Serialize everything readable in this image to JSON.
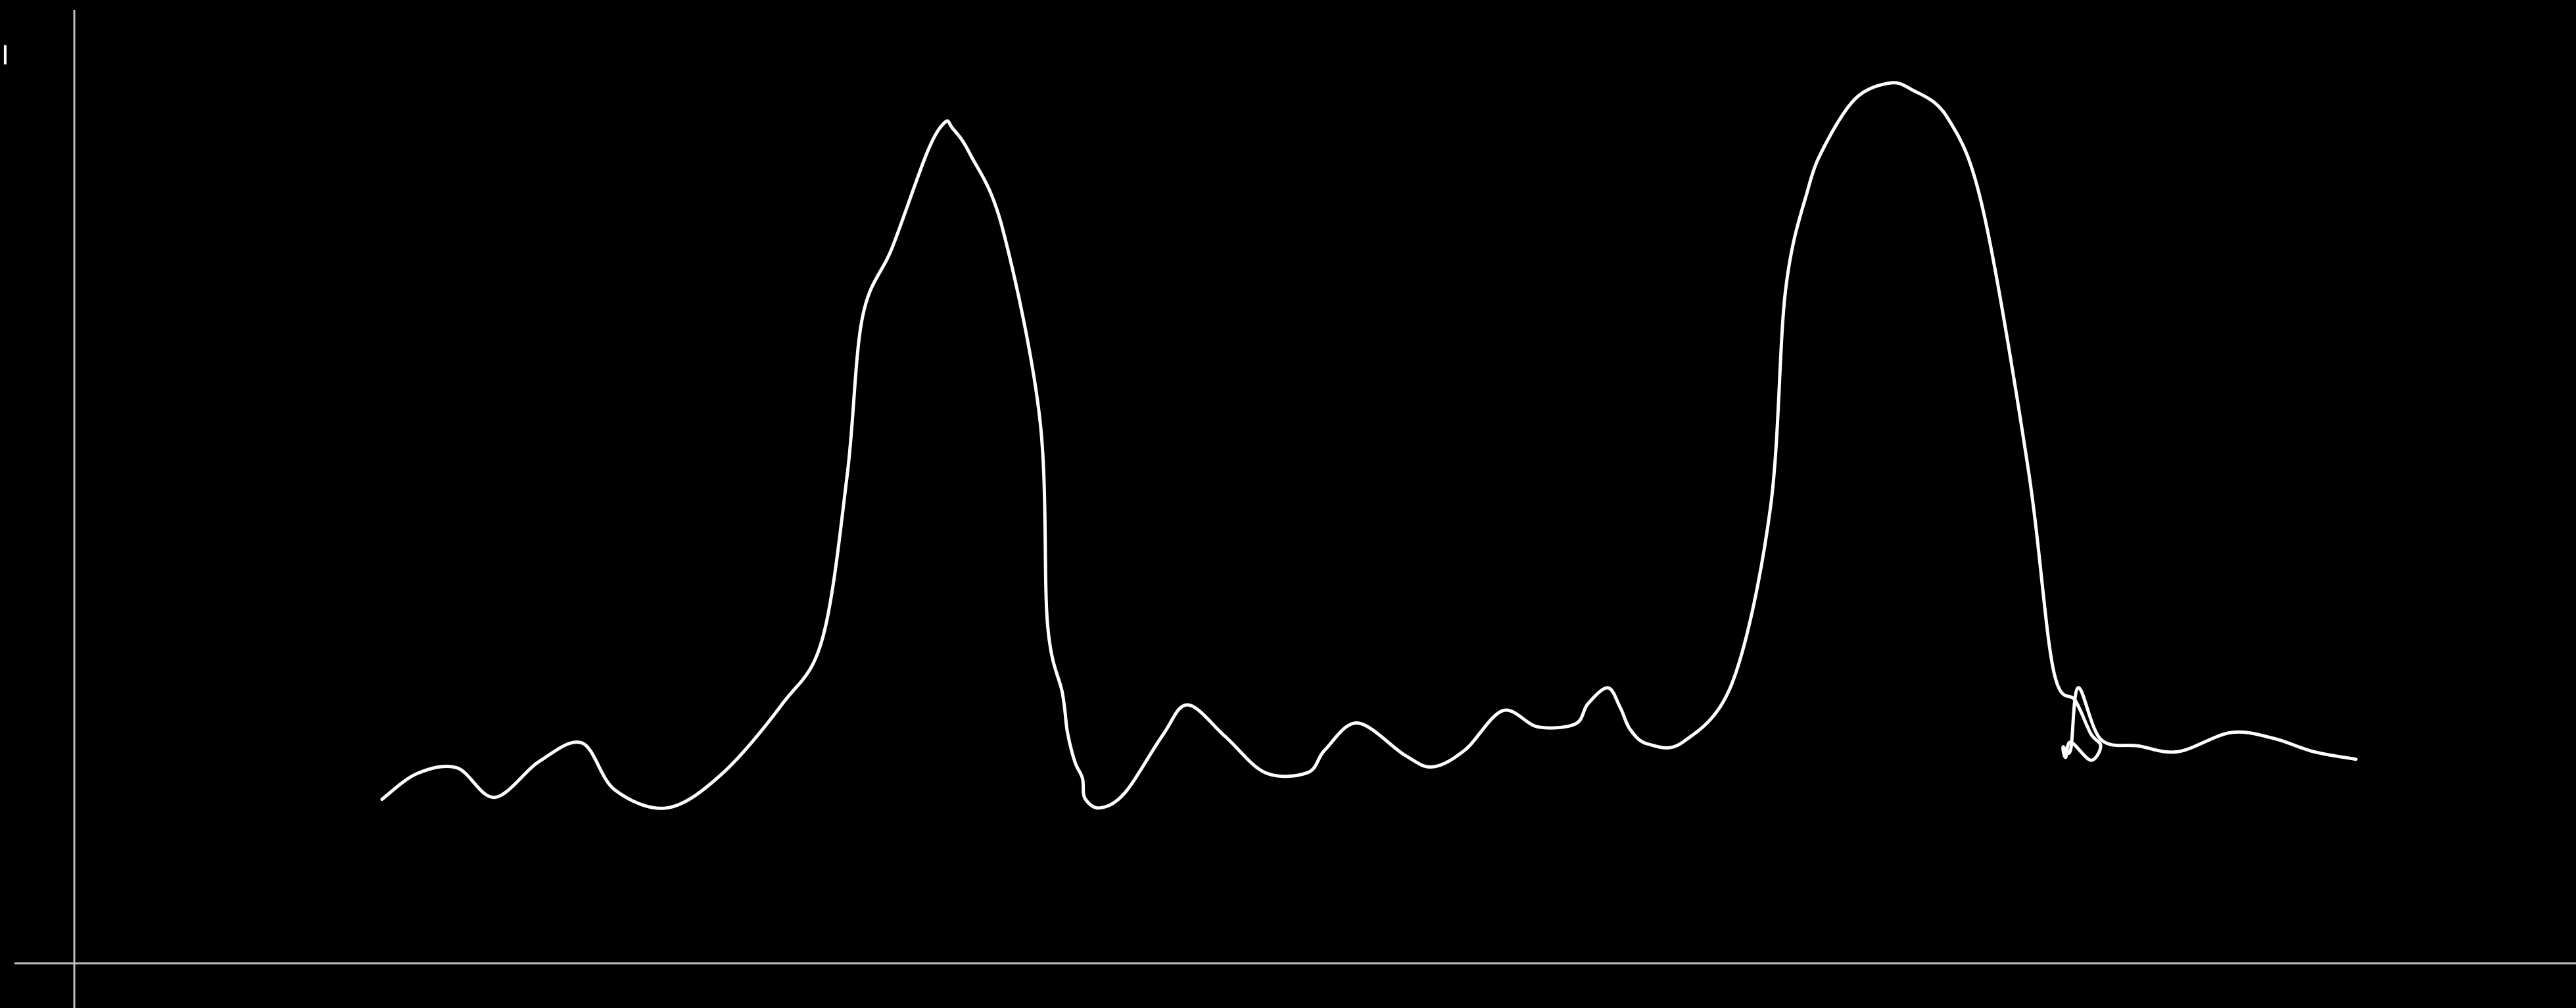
{
  "chart_data": {
    "type": "line",
    "title": "",
    "xlabel": "",
    "ylabel": "I",
    "xlim": [
      0,
      100
    ],
    "ylim": [
      0,
      100
    ],
    "grid": false,
    "legend": "none",
    "series": [
      {
        "color": "#ffffff",
        "x": [
          12.3,
          13.7,
          15.3,
          16.8,
          18.6,
          20.3,
          21.6,
          23.7,
          25.9,
          28.3,
          29.9,
          30.9,
          31.5,
          32.7,
          34.1,
          34.8,
          35.1,
          35.8,
          37.1,
          38.6,
          38.9,
          39.5,
          39.7,
          40.0,
          40.3,
          40.4,
          41.0,
          42.0,
          43.5,
          44.5,
          46.0,
          47.6,
          49.3,
          50.0,
          51.3,
          53.2,
          54.3,
          55.6,
          57.1,
          58.5,
          60.0,
          60.5,
          61.3,
          61.8,
          62.2,
          62.9,
          64.3,
          66.3,
          67.8,
          68.4,
          69.3,
          70.0,
          71.2,
          72.5,
          73.4,
          74.9,
          76.3,
          78.1,
          79.1,
          80.0,
          80.6,
          81.0,
          80.6,
          79.8,
          79.6,
          79.5,
          79.8,
          80.1,
          81.0,
          82.5,
          84.1,
          86.2,
          87.9,
          89.5,
          91.2
        ],
        "y": [
          17.2,
          19.9,
          20.5,
          17.4,
          21.2,
          23.1,
          18.2,
          16.3,
          19.9,
          27.2,
          34.0,
          51.3,
          67.7,
          75.1,
          85.1,
          88.2,
          87.6,
          84.9,
          77.1,
          57.0,
          35.7,
          28.3,
          24.2,
          21.1,
          19.4,
          17.3,
          16.3,
          17.9,
          23.9,
          27.1,
          23.8,
          20.0,
          20.0,
          22.4,
          25.2,
          21.8,
          20.6,
          22.4,
          26.5,
          24.8,
          25.1,
          27.2,
          28.9,
          26.8,
          24.5,
          23.0,
          23.2,
          29.6,
          47.8,
          70.5,
          81.2,
          85.9,
          90.7,
          92.3,
          91.7,
          88.6,
          79.0,
          51.9,
          30.9,
          27.5,
          24.1,
          22.8,
          21.3,
          23.2,
          21.6,
          22.7,
          22.4,
          28.9,
          23.5,
          22.8,
          22.2,
          24.2,
          23.6,
          22.2,
          21.4
        ]
      }
    ]
  }
}
